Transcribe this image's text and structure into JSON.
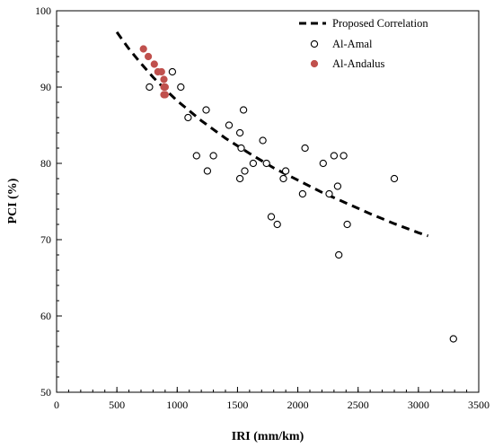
{
  "chart_data": {
    "type": "scatter",
    "xlabel": "IRI (mm/km)",
    "ylabel": "PCI (%)",
    "xlim": [
      0,
      3500
    ],
    "ylim": [
      50,
      100
    ],
    "x_ticks": [
      0,
      500,
      1000,
      1500,
      2000,
      2500,
      3000,
      3500
    ],
    "y_ticks": [
      50,
      60,
      70,
      80,
      90,
      100
    ],
    "x_minor_step": 100,
    "y_minor_step": 2,
    "grid": false,
    "legend_position": "top-right",
    "series": [
      {
        "name": "Proposed Correlation",
        "kind": "line",
        "style": "dashed",
        "color": "#000000",
        "x": [
          500,
          600,
          700,
          800,
          900,
          1000,
          1200,
          1400,
          1600,
          1800,
          2000,
          2200,
          2400,
          2600,
          2800,
          3000,
          3080
        ],
        "y": [
          97.2,
          95.0,
          93.1,
          91.3,
          89.7,
          88.2,
          85.6,
          83.3,
          81.3,
          79.4,
          77.8,
          76.2,
          74.8,
          73.4,
          72.1,
          70.9,
          70.5
        ]
      },
      {
        "name": "Al-Amal",
        "kind": "scatter",
        "marker": "open-circle",
        "color": "#000000",
        "x": [
          770,
          960,
          1030,
          1090,
          1160,
          1240,
          1250,
          1300,
          1430,
          1520,
          1530,
          1550,
          1560,
          1630,
          1710,
          1740,
          1780,
          1830,
          1880,
          1900,
          1520,
          2040,
          2060,
          2210,
          2260,
          2300,
          2330,
          2340,
          2380,
          2410,
          2800,
          3290
        ],
        "y": [
          90,
          92,
          90,
          86,
          81,
          87,
          79,
          81,
          85,
          84,
          82,
          87,
          79,
          80,
          83,
          80,
          73,
          72,
          78,
          79,
          78,
          76,
          82,
          80,
          76,
          81,
          77,
          68,
          81,
          72,
          78,
          57
        ]
      },
      {
        "name": "Al-Andalus",
        "kind": "scatter",
        "marker": "filled-circle",
        "color": "#c0504d",
        "x": [
          720,
          760,
          810,
          840,
          870,
          890,
          890,
          900,
          890,
          900
        ],
        "y": [
          95,
          94,
          93,
          92,
          92,
          91,
          90,
          90,
          89,
          89
        ]
      }
    ]
  }
}
